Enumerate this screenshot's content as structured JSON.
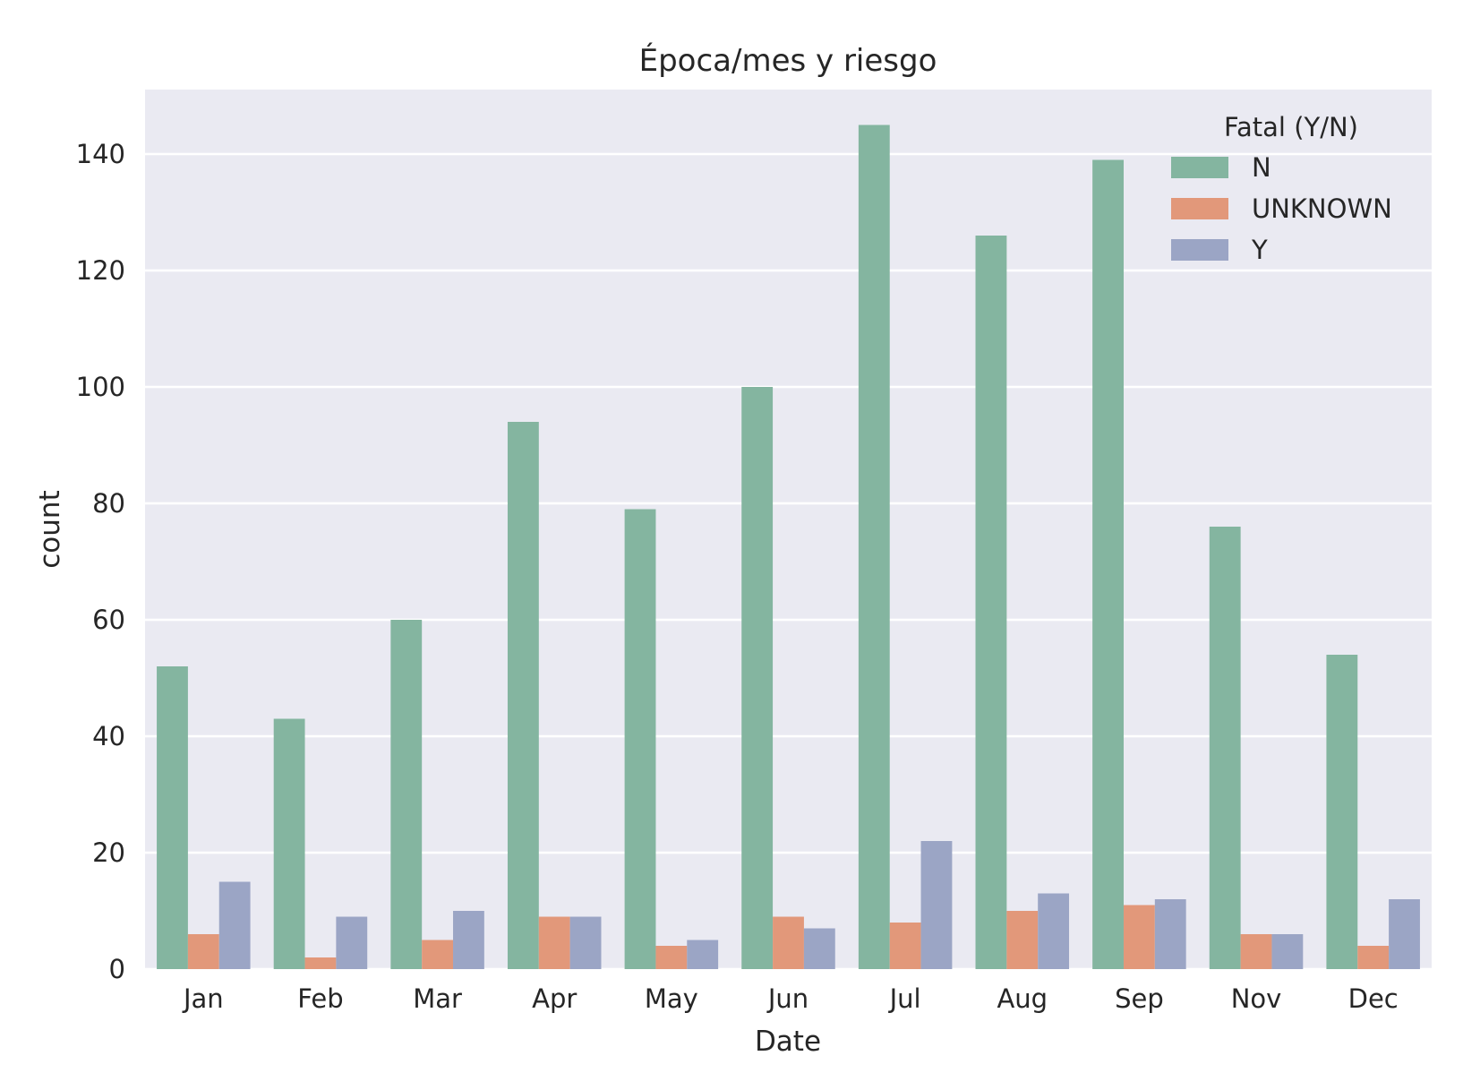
{
  "chart_data": {
    "type": "bar",
    "title": "Época/mes y riesgo",
    "xlabel": "Date",
    "ylabel": "count",
    "categories": [
      "Jan",
      "Feb",
      "Mar",
      "Apr",
      "May",
      "Jun",
      "Jul",
      "Aug",
      "Sep",
      "Nov",
      "Dec"
    ],
    "series": [
      {
        "name": "N",
        "color": "#84b5a0",
        "values": [
          52,
          43,
          60,
          94,
          79,
          100,
          145,
          126,
          139,
          76,
          54
        ]
      },
      {
        "name": "UNKNOWN",
        "color": "#e2987a",
        "values": [
          6,
          2,
          5,
          9,
          4,
          9,
          8,
          10,
          11,
          6,
          4
        ]
      },
      {
        "name": "Y",
        "color": "#9ba5c5",
        "values": [
          15,
          9,
          10,
          9,
          5,
          7,
          22,
          13,
          12,
          6,
          12
        ]
      }
    ],
    "ylim": [
      0,
      152
    ],
    "yticks": [
      0,
      20,
      40,
      60,
      80,
      100,
      120,
      140
    ],
    "grid": true,
    "background": "#eaeaf2",
    "legend": {
      "title": "Fatal (Y/N)",
      "placement": "top-right"
    }
  }
}
